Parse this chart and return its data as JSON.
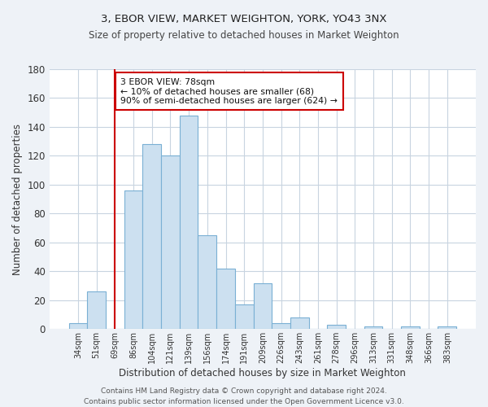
{
  "title1": "3, EBOR VIEW, MARKET WEIGHTON, YORK, YO43 3NX",
  "title2": "Size of property relative to detached houses in Market Weighton",
  "xlabel": "Distribution of detached houses by size in Market Weighton",
  "ylabel": "Number of detached properties",
  "bar_labels": [
    "34sqm",
    "51sqm",
    "69sqm",
    "86sqm",
    "104sqm",
    "121sqm",
    "139sqm",
    "156sqm",
    "174sqm",
    "191sqm",
    "209sqm",
    "226sqm",
    "243sqm",
    "261sqm",
    "278sqm",
    "296sqm",
    "313sqm",
    "331sqm",
    "348sqm",
    "366sqm",
    "383sqm"
  ],
  "bar_values": [
    4,
    26,
    0,
    96,
    128,
    120,
    148,
    65,
    42,
    17,
    32,
    4,
    8,
    0,
    3,
    0,
    2,
    0,
    2,
    0,
    2
  ],
  "bar_color": "#cce0f0",
  "bar_edge_color": "#7ab0d4",
  "vline_color": "#cc0000",
  "ylim": [
    0,
    180
  ],
  "yticks": [
    0,
    20,
    40,
    60,
    80,
    100,
    120,
    140,
    160,
    180
  ],
  "annotation_text": "3 EBOR VIEW: 78sqm\n← 10% of detached houses are smaller (68)\n90% of semi-detached houses are larger (624) →",
  "annotation_box_color": "#ffffff",
  "annotation_border_color": "#cc0000",
  "footer_text": "Contains HM Land Registry data © Crown copyright and database right 2024.\nContains public sector information licensed under the Open Government Licence v3.0.",
  "bg_color": "#eef2f7",
  "plot_bg_color": "#ffffff",
  "grid_color": "#c8d4e0"
}
